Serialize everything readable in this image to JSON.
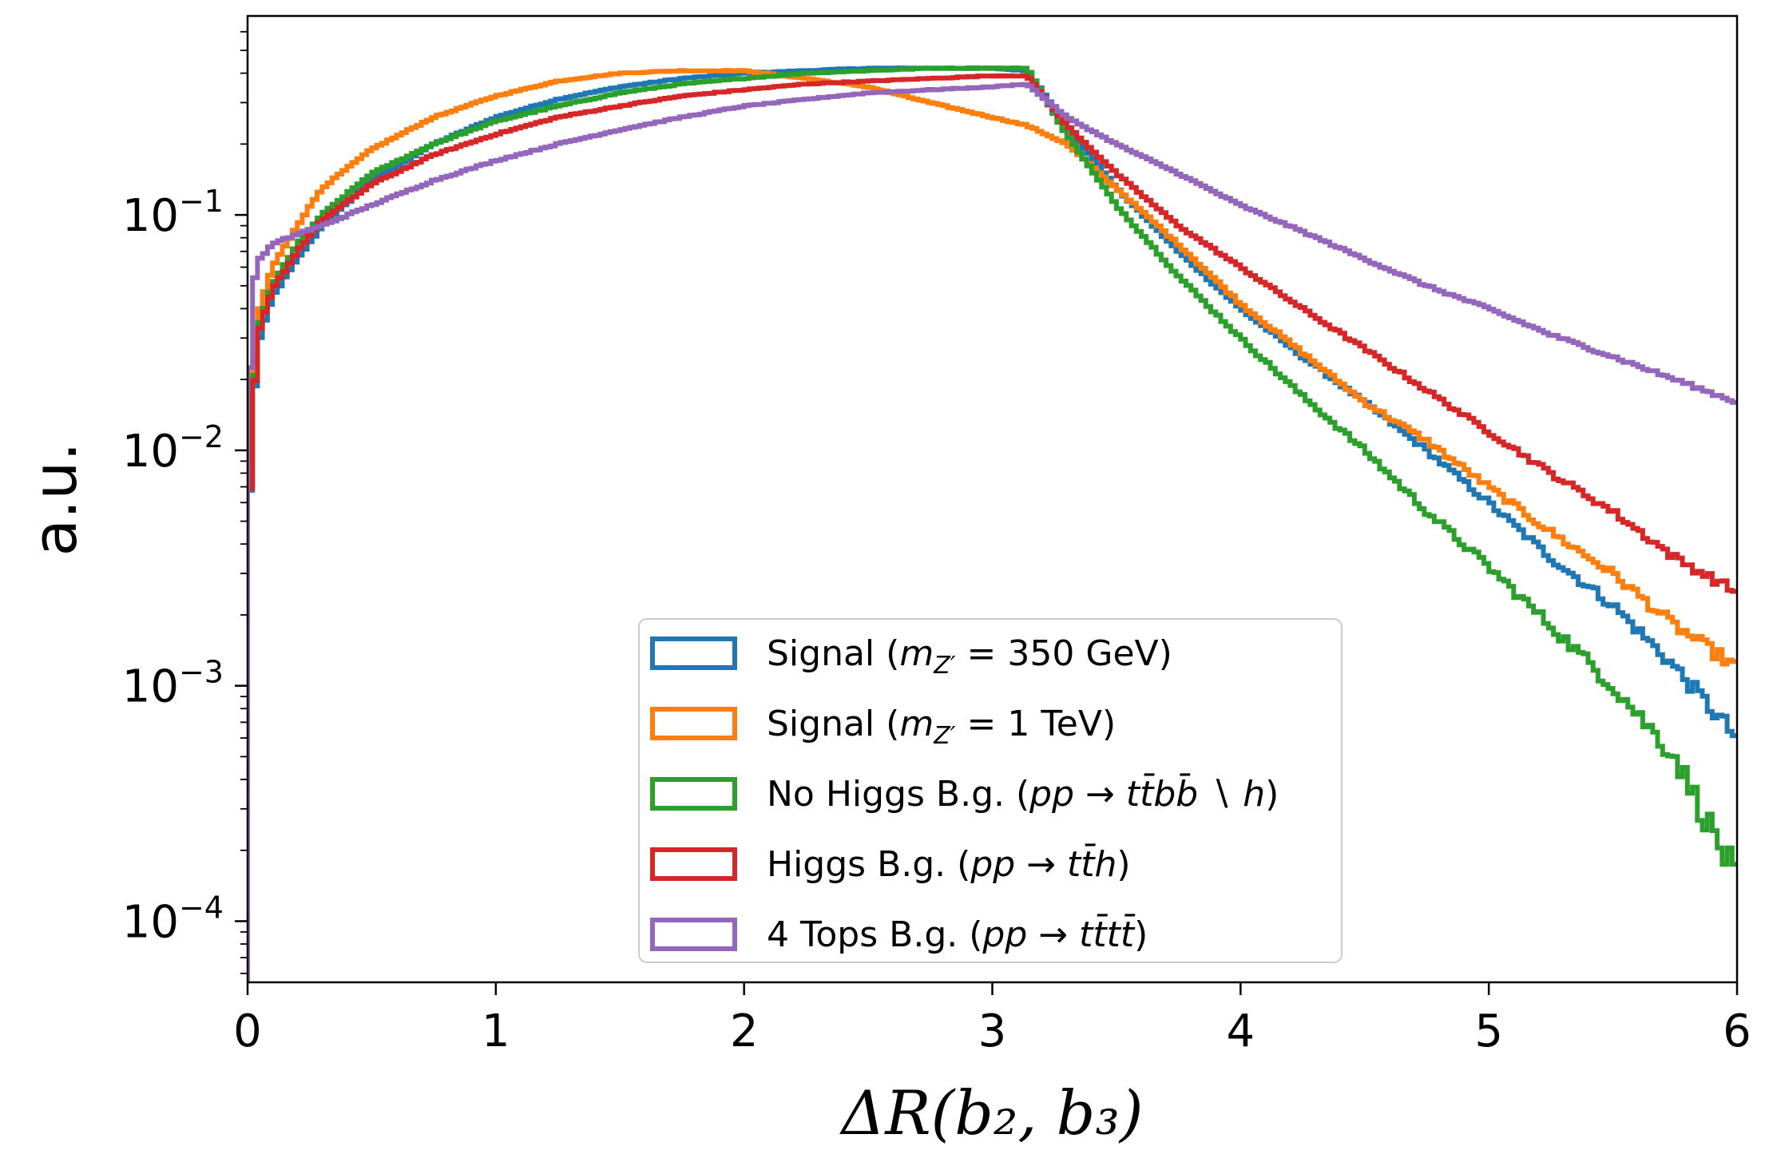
{
  "chart_data": {
    "type": "line",
    "drawstyle": "steps",
    "title": "",
    "xlabel": "ΔR(b₂, b₃)",
    "ylabel": "a.u.",
    "xlim": [
      0,
      6
    ],
    "ylim": [
      5.5e-05,
      0.7
    ],
    "yscale": "log",
    "grid": false,
    "legend_position": "lower-center",
    "xticks": [
      0,
      1,
      2,
      3,
      4,
      5,
      6
    ],
    "xtick_labels": [
      "0",
      "1",
      "2",
      "3",
      "4",
      "5",
      "6"
    ],
    "yticks": [
      0.0001,
      0.001,
      0.01,
      0.1
    ],
    "ytick_labels": [
      {
        "base": "10",
        "exp": "−4"
      },
      {
        "base": "10",
        "exp": "−3"
      },
      {
        "base": "10",
        "exp": "−2"
      },
      {
        "base": "10",
        "exp": "−1"
      }
    ],
    "x": [
      0.0,
      0.02,
      0.05,
      0.1,
      0.2,
      0.3,
      0.5,
      0.75,
      1.0,
      1.25,
      1.5,
      1.75,
      2.0,
      2.25,
      2.5,
      2.75,
      3.0,
      3.14,
      3.3,
      3.5,
      3.75,
      4.0,
      4.25,
      4.5,
      4.75,
      5.0,
      5.25,
      5.5,
      5.75,
      6.0
    ],
    "series": [
      {
        "name": "Signal (m_Z′ = 350 GeV)",
        "color": "#1f77b4",
        "values": [
          0.003,
          0.015,
          0.03,
          0.045,
          0.065,
          0.09,
          0.14,
          0.2,
          0.26,
          0.31,
          0.35,
          0.38,
          0.4,
          0.41,
          0.42,
          0.42,
          0.42,
          0.41,
          0.24,
          0.13,
          0.07,
          0.04,
          0.025,
          0.016,
          0.01,
          0.006,
          0.0035,
          0.0022,
          0.0012,
          0.0006
        ]
      },
      {
        "name": "Signal (m_Z′ = 1 TeV)",
        "color": "#ff7f0e",
        "values": [
          0.004,
          0.018,
          0.04,
          0.06,
          0.09,
          0.13,
          0.19,
          0.26,
          0.32,
          0.37,
          0.4,
          0.41,
          0.41,
          0.38,
          0.35,
          0.3,
          0.26,
          0.24,
          0.2,
          0.13,
          0.075,
          0.042,
          0.026,
          0.016,
          0.011,
          0.007,
          0.0045,
          0.003,
          0.0018,
          0.0012
        ]
      },
      {
        "name": "No Higgs B.g. (pp → tt̄bb̄ ∖ h)",
        "color": "#2ca02c",
        "values": [
          0.003,
          0.016,
          0.035,
          0.05,
          0.075,
          0.1,
          0.15,
          0.2,
          0.25,
          0.29,
          0.33,
          0.36,
          0.38,
          0.4,
          0.41,
          0.42,
          0.42,
          0.42,
          0.22,
          0.11,
          0.055,
          0.03,
          0.017,
          0.01,
          0.0055,
          0.0032,
          0.0018,
          0.001,
          0.0005,
          0.00015
        ]
      },
      {
        "name": "Higgs B.g. (pp → tt̄h)",
        "color": "#d62728",
        "values": [
          0.003,
          0.015,
          0.033,
          0.048,
          0.07,
          0.095,
          0.135,
          0.18,
          0.22,
          0.26,
          0.29,
          0.32,
          0.34,
          0.36,
          0.37,
          0.38,
          0.39,
          0.39,
          0.24,
          0.15,
          0.09,
          0.06,
          0.04,
          0.027,
          0.018,
          0.012,
          0.008,
          0.0055,
          0.0035,
          0.0025
        ]
      },
      {
        "name": "4 Tops B.g. (pp → tt̄tt̄)",
        "color": "#9467bd",
        "values": [
          0.01,
          0.05,
          0.065,
          0.075,
          0.083,
          0.09,
          0.11,
          0.14,
          0.17,
          0.2,
          0.23,
          0.26,
          0.29,
          0.31,
          0.33,
          0.34,
          0.35,
          0.36,
          0.26,
          0.2,
          0.15,
          0.11,
          0.085,
          0.065,
          0.05,
          0.04,
          0.031,
          0.025,
          0.02,
          0.016
        ]
      }
    ]
  },
  "legend": {
    "items": [
      {
        "prefix": "Signal (",
        "math": "m",
        "sub": "Z′",
        "suffix": " = 350 GeV)"
      },
      {
        "prefix": "Signal (",
        "math": "m",
        "sub": "Z′",
        "suffix": " = 1 TeV)"
      },
      {
        "prefix": "No Higgs B.g. (",
        "math": "pp → tt̄bb̄ ∖ h",
        "sub": "",
        "suffix": ")"
      },
      {
        "prefix": "Higgs B.g. (",
        "math": "pp → tt̄h",
        "sub": "",
        "suffix": ")"
      },
      {
        "prefix": "4 Tops B.g. (",
        "math": "pp → tt̄tt̄",
        "sub": "",
        "suffix": ")"
      }
    ]
  }
}
